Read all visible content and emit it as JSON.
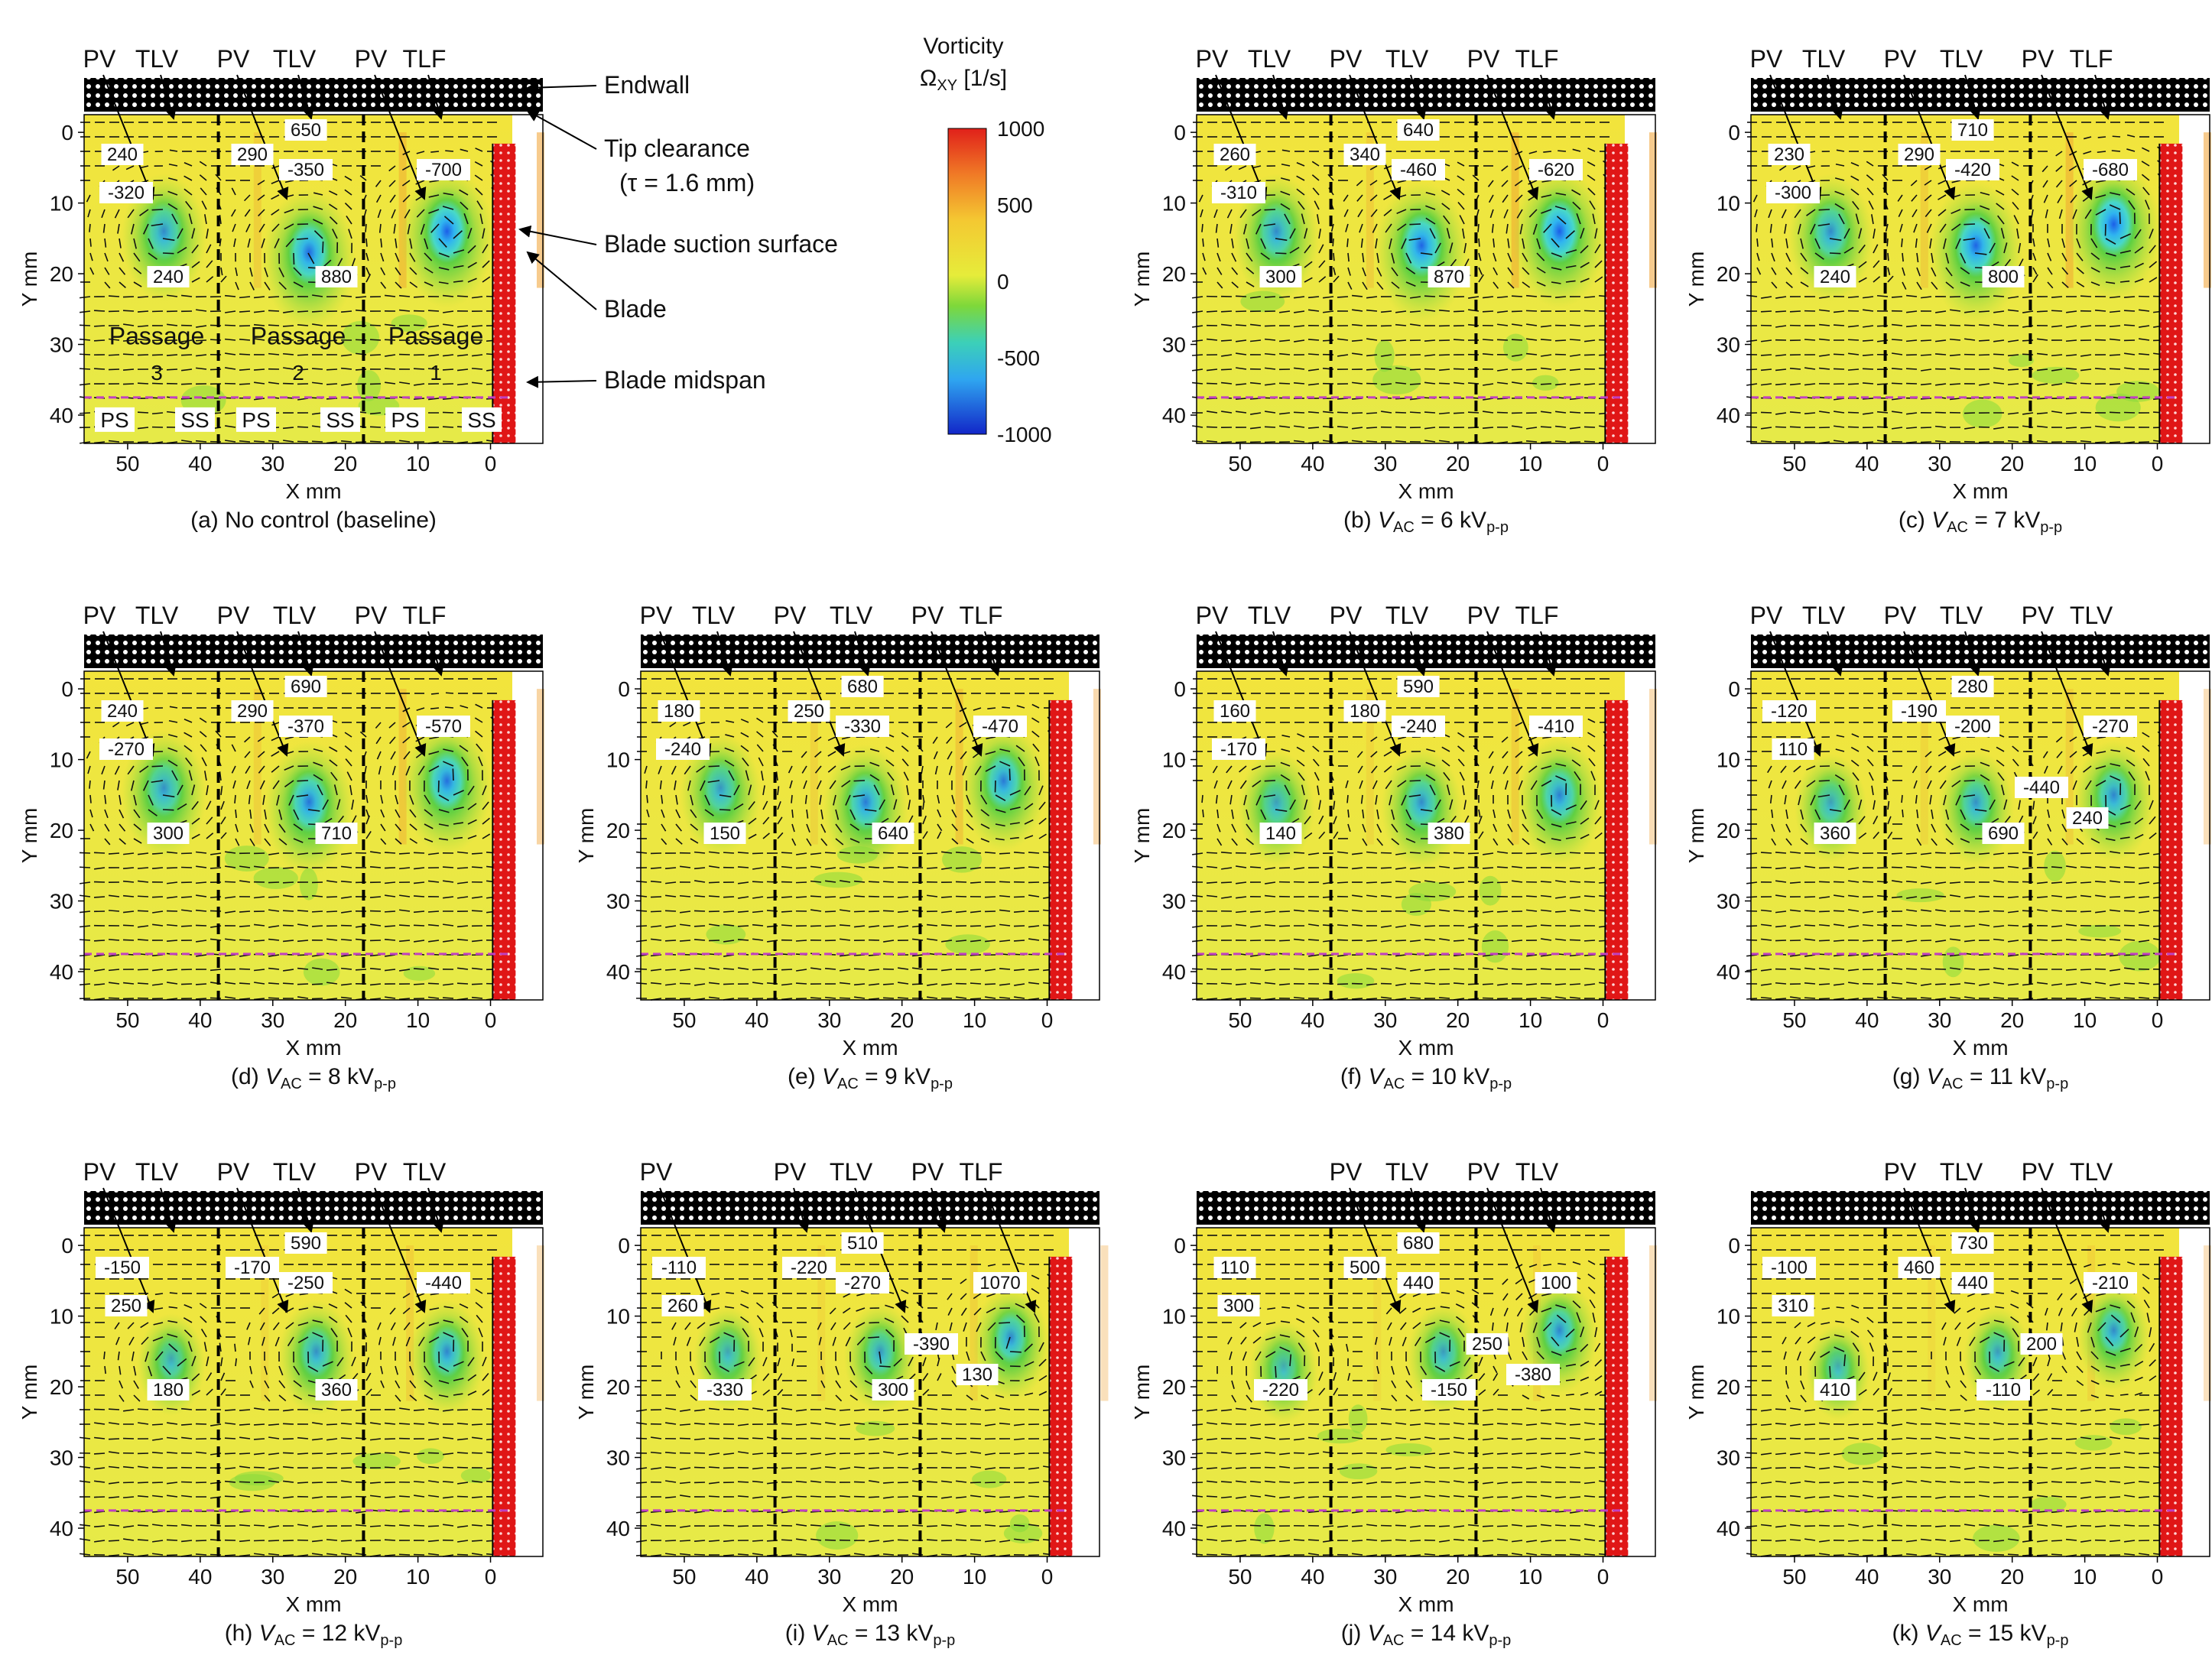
{
  "figure": {
    "axis_labels": {
      "x": "X mm",
      "y": "Y mm"
    },
    "x_ticks": [
      "50",
      "40",
      "30",
      "20",
      "10",
      "0"
    ],
    "y_ticks": [
      "0",
      "10",
      "20",
      "30",
      "40"
    ],
    "colorbar": {
      "title_line1": "Vorticity",
      "title_line2": "Ω",
      "title_sub": "XY",
      "title_unit": " [1/s]",
      "ticks": [
        "1000",
        "500",
        "0",
        "-500",
        "-1000"
      ],
      "colors": [
        "#e0201a",
        "#f08a2a",
        "#f6e63a",
        "#d8ee48",
        "#5ecf3a",
        "#3fd6e2",
        "#2a8ef0",
        "#1226c8"
      ]
    },
    "annotations": {
      "endwall": "Endwall",
      "tip_clearance_1": "Tip clearance",
      "tip_clearance_2": "(τ = 1.6 mm)",
      "suction_surface": "Blade suction surface",
      "blade": "Blade",
      "midspan": "Blade midspan",
      "passages": [
        {
          "label": "Passage",
          "num": "3"
        },
        {
          "label": "Passage",
          "num": "2"
        },
        {
          "label": "Passage",
          "num": "1"
        }
      ],
      "side_labels": [
        "PS",
        "SS",
        "PS",
        "SS",
        "PS",
        "SS"
      ]
    },
    "panels": [
      {
        "id": "a",
        "caption_pre": "(a) No control (baseline)",
        "caption_v": "",
        "caption_eq": "",
        "caption_sub": "",
        "top_labels": [
          "PV",
          "TLV",
          "PV",
          "TLV",
          "PV",
          "TLF"
        ],
        "values": [
          "240",
          "-320",
          "290",
          "650",
          "-350",
          "880",
          "-700",
          "240"
        ],
        "vortices": [
          {
            "x": 45,
            "y": 14,
            "s": 1.0,
            "c": 0.55
          },
          {
            "x": 25,
            "y": 17,
            "s": 1.1,
            "c": 0.85
          },
          {
            "x": 6,
            "y": 14,
            "s": 1.1,
            "c": 1.0
          }
        ]
      },
      {
        "id": "b",
        "caption_pre": "(b) ",
        "caption_v": "V",
        "caption_eq": " = 6 kV",
        "caption_sub": "p-p",
        "top_labels": [
          "PV",
          "TLV",
          "PV",
          "TLV",
          "PV",
          "TLF"
        ],
        "values": [
          "260",
          "-310",
          "340",
          "640",
          "-460",
          "870",
          "-620",
          "300"
        ],
        "vortices": [
          {
            "x": 45,
            "y": 14,
            "s": 1.0,
            "c": 0.55
          },
          {
            "x": 25,
            "y": 16,
            "s": 1.1,
            "c": 0.9
          },
          {
            "x": 6,
            "y": 14,
            "s": 1.1,
            "c": 1.0
          }
        ]
      },
      {
        "id": "c",
        "caption_pre": "(c) ",
        "caption_v": "V",
        "caption_eq": " = 7 kV",
        "caption_sub": "p-p",
        "top_labels": [
          "PV",
          "TLV",
          "PV",
          "TLV",
          "PV",
          "TLF"
        ],
        "values": [
          "230",
          "-300",
          "290",
          "710",
          "-420",
          "800",
          "-680",
          "240"
        ],
        "vortices": [
          {
            "x": 45,
            "y": 14,
            "s": 1.0,
            "c": 0.55
          },
          {
            "x": 25,
            "y": 16,
            "s": 1.1,
            "c": 0.9
          },
          {
            "x": 6,
            "y": 13,
            "s": 1.1,
            "c": 1.0
          }
        ]
      },
      {
        "id": "d",
        "caption_pre": "(d) ",
        "caption_v": "V",
        "caption_eq": " = 8 kV",
        "caption_sub": "p-p",
        "top_labels": [
          "PV",
          "TLV",
          "PV",
          "TLV",
          "PV",
          "TLF"
        ],
        "values": [
          "240",
          "-270",
          "290",
          "690",
          "-370",
          "710",
          "-570",
          "300"
        ],
        "vortices": [
          {
            "x": 45,
            "y": 14,
            "s": 1.0,
            "c": 0.5
          },
          {
            "x": 25,
            "y": 16,
            "s": 1.05,
            "c": 0.75
          },
          {
            "x": 6,
            "y": 13,
            "s": 1.05,
            "c": 0.8
          }
        ]
      },
      {
        "id": "e",
        "caption_pre": "(e) ",
        "caption_v": "V",
        "caption_eq": " = 9 kV",
        "caption_sub": "p-p",
        "top_labels": [
          "PV",
          "TLV",
          "PV",
          "TLV",
          "PV",
          "TLF"
        ],
        "values": [
          "180",
          "-240",
          "250",
          "680",
          "-330",
          "640",
          "-470",
          "150"
        ],
        "vortices": [
          {
            "x": 45,
            "y": 14,
            "s": 0.95,
            "c": 0.45
          },
          {
            "x": 25,
            "y": 16,
            "s": 1.0,
            "c": 0.7
          },
          {
            "x": 6,
            "y": 13,
            "s": 1.0,
            "c": 0.7
          }
        ]
      },
      {
        "id": "f",
        "caption_pre": "(f) ",
        "caption_v": "V",
        "caption_eq": " = 10 kV",
        "caption_sub": "p-p",
        "top_labels": [
          "PV",
          "TLV",
          "PV",
          "TLV",
          "PV",
          "TLF"
        ],
        "values": [
          "160",
          "-170",
          "180",
          "590",
          "-240",
          "380",
          "-410",
          "140"
        ],
        "vortices": [
          {
            "x": 45,
            "y": 16,
            "s": 0.9,
            "c": 0.35
          },
          {
            "x": 25,
            "y": 16,
            "s": 0.95,
            "c": 0.55
          },
          {
            "x": 6,
            "y": 15,
            "s": 1.0,
            "c": 0.65
          }
        ]
      },
      {
        "id": "g",
        "caption_pre": "(g) ",
        "caption_v": "V",
        "caption_eq": " = 11 kV",
        "caption_sub": "p-p",
        "top_labels": [
          "PV",
          "TLV",
          "PV",
          "TLV",
          "PV",
          "TLV"
        ],
        "values": [
          "-120",
          "110",
          "-190",
          "280",
          "-200",
          "690",
          "-270",
          "360",
          "-440",
          "240"
        ],
        "vortices": [
          {
            "x": 45,
            "y": 16,
            "s": 0.85,
            "c": 0.35
          },
          {
            "x": 25,
            "y": 16,
            "s": 0.9,
            "c": 0.5
          },
          {
            "x": 6,
            "y": 15,
            "s": 0.95,
            "c": 0.6
          }
        ]
      },
      {
        "id": "h",
        "caption_pre": "(h) ",
        "caption_v": "V",
        "caption_eq": " = 12 kV",
        "caption_sub": "p-p",
        "top_labels": [
          "PV",
          "TLV",
          "PV",
          "TLV",
          "PV",
          "TLV"
        ],
        "values": [
          "-150",
          "250",
          "-170",
          "590",
          "-250",
          "360",
          "-440",
          "180"
        ],
        "vortices": [
          {
            "x": 44,
            "y": 16,
            "s": 0.8,
            "c": 0.3
          },
          {
            "x": 24,
            "y": 15,
            "s": 0.9,
            "c": 0.5
          },
          {
            "x": 6,
            "y": 15,
            "s": 0.9,
            "c": 0.6
          }
        ]
      },
      {
        "id": "i",
        "caption_pre": "(i) ",
        "caption_v": "V",
        "caption_eq": " = 13 kV",
        "caption_sub": "p-p",
        "top_labels": [
          "PV",
          "PV",
          "TLV",
          "PV",
          "TLF"
        ],
        "values": [
          "-110",
          "260",
          "-220",
          "510",
          "-270",
          "300",
          "1070",
          "-330",
          "-390",
          "130"
        ],
        "vortices": [
          {
            "x": 44,
            "y": 15,
            "s": 0.8,
            "c": 0.3
          },
          {
            "x": 23,
            "y": 15,
            "s": 0.85,
            "c": 0.45
          },
          {
            "x": 5,
            "y": 13,
            "s": 0.9,
            "c": 0.6
          }
        ]
      },
      {
        "id": "j",
        "caption_pre": "(j) ",
        "caption_v": "V",
        "caption_eq": " = 14 kV",
        "caption_sub": "p-p",
        "top_labels": [
          "PV",
          "TLV",
          "PV",
          "TLV"
        ],
        "values": [
          "110",
          "300",
          "500",
          "680",
          "440",
          "-150",
          "100",
          "-220",
          "250",
          "-380"
        ],
        "vortices": [
          {
            "x": 44,
            "y": 17,
            "s": 0.8,
            "c": 0.25
          },
          {
            "x": 22,
            "y": 15,
            "s": 0.85,
            "c": 0.4
          },
          {
            "x": 6,
            "y": 12,
            "s": 0.9,
            "c": 0.6
          }
        ]
      },
      {
        "id": "k",
        "caption_pre": "(k) ",
        "caption_v": "V",
        "caption_eq": " = 15 kV",
        "caption_sub": "p-p",
        "top_labels": [
          "PV",
          "TLV",
          "PV",
          "TLV"
        ],
        "values": [
          "-100",
          "310",
          "460",
          "730",
          "440",
          "-110",
          "-210",
          "410",
          "200"
        ],
        "vortices": [
          {
            "x": 44,
            "y": 17,
            "s": 0.75,
            "c": 0.25
          },
          {
            "x": 22,
            "y": 15,
            "s": 0.8,
            "c": 0.4
          },
          {
            "x": 6,
            "y": 12,
            "s": 0.85,
            "c": 0.55
          }
        ]
      }
    ]
  }
}
